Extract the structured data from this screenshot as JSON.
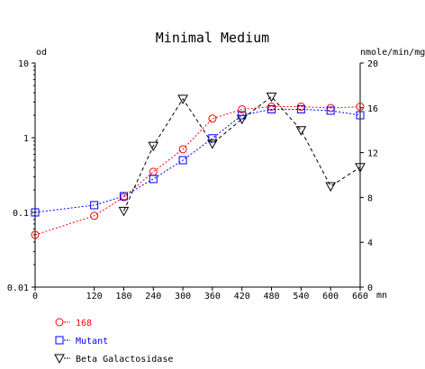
{
  "chart_data": {
    "type": "line",
    "title": "Minimal Medium",
    "left_unit": "od",
    "right_unit": "nmole/min/mg",
    "x_unit": "mn",
    "x": [
      0,
      120,
      180,
      240,
      300,
      360,
      420,
      480,
      540,
      600,
      660
    ],
    "x_ticks": [
      "0",
      "120",
      "180",
      "240",
      "300",
      "360",
      "420",
      "480",
      "540",
      "600",
      "660"
    ],
    "xlim": [
      0,
      660
    ],
    "left_axis": {
      "scale": "log",
      "ylim": [
        0.01,
        10
      ],
      "ticks": [
        "10",
        "1",
        "0.1",
        "0.01"
      ]
    },
    "right_axis": {
      "scale": "linear",
      "ylim": [
        0,
        20
      ],
      "ticks": [
        "20",
        "16",
        "12",
        "8",
        "4",
        "0"
      ]
    },
    "grid": false,
    "legend_position": "bottom-left",
    "series": [
      {
        "name": "168",
        "axis": "left",
        "marker": "circle",
        "color": "#ff0000",
        "line_style": "dotted",
        "values": [
          0.05,
          0.09,
          0.16,
          0.35,
          0.7,
          1.8,
          2.4,
          2.6,
          2.6,
          2.5,
          2.6
        ]
      },
      {
        "name": "Mutant",
        "axis": "left",
        "marker": "square",
        "color": "#0000ff",
        "line_style": "dotted",
        "values": [
          0.1,
          0.125,
          0.165,
          0.28,
          0.5,
          0.98,
          2.0,
          2.4,
          2.4,
          2.3,
          2.0
        ]
      },
      {
        "name": "Beta Galactosidase",
        "axis": "right",
        "marker": "triangle-down",
        "color": "#000000",
        "line_style": "dashed",
        "values": [
          null,
          null,
          6.8,
          12.6,
          16.8,
          12.8,
          15.0,
          17.0,
          14.0,
          9.0,
          10.7
        ]
      }
    ]
  }
}
